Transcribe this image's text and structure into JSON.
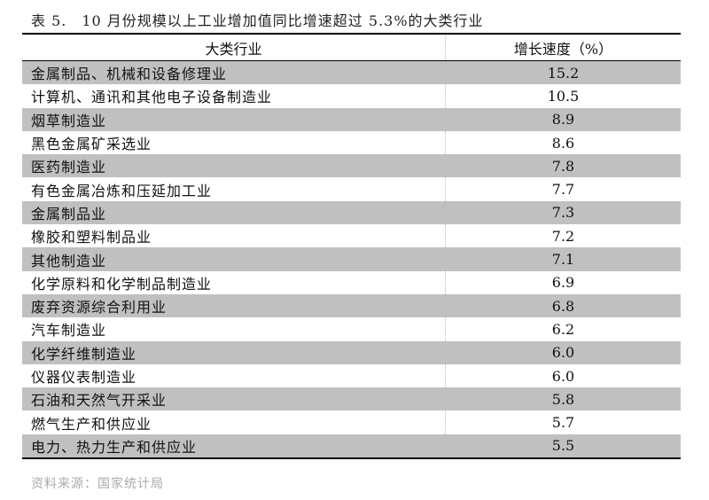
{
  "title": "表 5.　10 月份规模以上工业增加值同比增速超过 5.3%的大类行业",
  "table": {
    "headers": [
      "大类行业",
      "增长速度（%）"
    ],
    "rows": [
      [
        "金属制品、机械和设备修理业",
        "15.2"
      ],
      [
        "计算机、通讯和其他电子设备制造业",
        "10.5"
      ],
      [
        "烟草制造业",
        "8.9"
      ],
      [
        "黑色金属矿采选业",
        "8.6"
      ],
      [
        "医药制造业",
        "7.8"
      ],
      [
        "有色金属冶炼和压延加工业",
        "7.7"
      ],
      [
        "金属制品业",
        "7.3"
      ],
      [
        "橡胶和塑料制品业",
        "7.2"
      ],
      [
        "其他制造业",
        "7.1"
      ],
      [
        "化学原料和化学制品制造业",
        "6.9"
      ],
      [
        "废弃资源综合利用业",
        "6.8"
      ],
      [
        "汽车制造业",
        "6.2"
      ],
      [
        "化学纤维制造业",
        "6.0"
      ],
      [
        "仪器仪表制造业",
        "6.0"
      ],
      [
        "石油和天然气开采业",
        "5.8"
      ],
      [
        "燃气生产和供应业",
        "5.7"
      ],
      [
        "电力、热力生产和供应业",
        "5.5"
      ]
    ]
  },
  "source": "资料来源：国家统计局",
  "colors": {
    "stripe": "#c0c0c0"
  }
}
